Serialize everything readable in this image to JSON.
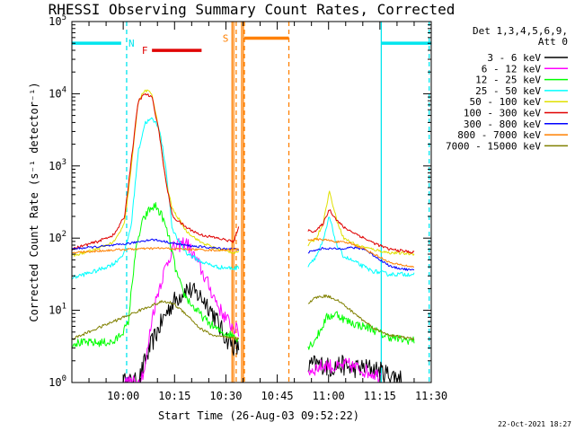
{
  "chart_data": {
    "type": "line",
    "title": "RHESSI Observing Summary Count Rates, Corrected",
    "xlabel": "Start Time (26-Aug-03 09:52:22)",
    "ylabel": "Corrected Count Rate (s⁻¹ detector⁻¹)",
    "xlim": [
      -7.4,
      97.6
    ],
    "ylim_log10": [
      0,
      5
    ],
    "x_ticks": [
      {
        "value": 7.6,
        "label": "10:00"
      },
      {
        "value": 22.6,
        "label": "10:15"
      },
      {
        "value": 37.6,
        "label": "10:30"
      },
      {
        "value": 52.6,
        "label": "10:45"
      },
      {
        "value": 67.6,
        "label": "11:00"
      },
      {
        "value": 82.6,
        "label": "11:15"
      },
      {
        "value": 97.6,
        "label": "11:30"
      }
    ],
    "y_ticks": [
      {
        "value": 0,
        "base": "10",
        "exp": "0"
      },
      {
        "value": 1,
        "base": "10",
        "exp": "1"
      },
      {
        "value": 2,
        "base": "10",
        "exp": "2"
      },
      {
        "value": 3,
        "base": "10",
        "exp": "3"
      },
      {
        "value": 4,
        "base": "10",
        "exp": "4"
      },
      {
        "value": 5,
        "base": "10",
        "exp": "5"
      }
    ],
    "legend": {
      "header": [
        "Det 1,3,4,5,6,9,",
        "Att 0"
      ],
      "position": "right"
    },
    "series": [
      {
        "name": "3 - 6 keV",
        "color": "#000000",
        "noise": 0.14,
        "x": [
          7.6,
          10.0,
          12.0,
          14.0,
          16.0,
          18.0,
          20.0,
          22.0,
          26.0,
          30.0,
          32.0,
          34.0,
          36.0,
          38.0,
          40.0,
          41.5,
          61.5,
          63.0,
          66.0,
          68.0,
          71.0,
          74.0,
          77.0,
          80.0,
          83.0,
          86.0,
          89.0
        ],
        "log10y": [
          0,
          0,
          0,
          0.3,
          0.55,
          0.75,
          0.95,
          1.1,
          1.3,
          1.2,
          1.1,
          0.95,
          0.75,
          0.6,
          0.5,
          0.45,
          0.2,
          0.25,
          0.25,
          0.2,
          0.25,
          0.2,
          0.2,
          0.2,
          0.15,
          0.1,
          0.05
        ]
      },
      {
        "name": "6 - 12 keV",
        "color": "#ff00ff",
        "noise": 0.1,
        "x": [
          7.6,
          10.0,
          12.0,
          14.0,
          16.0,
          18.0,
          20.0,
          22.0,
          26.0,
          30.0,
          33.0,
          36.0,
          39.0,
          41.5,
          61.5,
          64.0,
          67.0,
          70.0,
          73.0,
          76.0,
          79.0,
          83.0
        ],
        "log10y": [
          0,
          0,
          0,
          0.2,
          0.9,
          1.3,
          1.6,
          1.85,
          1.95,
          1.6,
          1.3,
          1.0,
          0.8,
          0.7,
          0.15,
          0.2,
          0.25,
          0.2,
          0.25,
          0.2,
          0.15,
          0.1
        ]
      },
      {
        "name": "12 - 25 keV",
        "color": "#00ff00",
        "noise": 0.06,
        "x": [
          -7.4,
          0.0,
          5.0,
          9.0,
          11.0,
          13.0,
          15.0,
          17.0,
          19.0,
          21.0,
          23.0,
          25.0,
          28.0,
          32.0,
          36.0,
          40.0,
          41.5,
          61.5,
          63.0,
          65.0,
          67.0,
          70.0,
          73.0,
          76.0,
          80.0,
          84.0,
          88.0,
          92.6
        ],
        "log10y": [
          0.55,
          0.55,
          0.56,
          0.8,
          1.75,
          2.2,
          2.38,
          2.45,
          2.3,
          2.0,
          1.55,
          1.25,
          1.05,
          0.85,
          0.7,
          0.65,
          0.6,
          0.5,
          0.55,
          0.7,
          0.9,
          0.95,
          0.85,
          0.8,
          0.75,
          0.65,
          0.6,
          0.58
        ]
      },
      {
        "name": "25 - 50 keV",
        "color": "#00ffff",
        "noise": 0.03,
        "x": [
          -7.4,
          0.0,
          5.0,
          8.0,
          10.0,
          12.0,
          14.0,
          16.0,
          18.0,
          20.0,
          22.0,
          26.0,
          30.0,
          35.0,
          40.0,
          41.5,
          61.5,
          64.0,
          66.0,
          67.8,
          70.0,
          72.0,
          74.0,
          76.0,
          80.0,
          85.0,
          92.6
        ],
        "log10y": [
          1.45,
          1.55,
          1.65,
          1.8,
          2.2,
          3.2,
          3.6,
          3.65,
          3.55,
          3.0,
          2.1,
          1.8,
          1.68,
          1.6,
          1.58,
          1.6,
          1.62,
          1.75,
          1.95,
          2.3,
          1.9,
          1.75,
          1.7,
          1.65,
          1.55,
          1.5,
          1.5
        ]
      },
      {
        "name": "50 - 100 keV",
        "color": "#e0e000",
        "noise": 0.02,
        "x": [
          -7.4,
          0.0,
          5.0,
          8.0,
          10.0,
          12.0,
          14.0,
          16.0,
          18.0,
          20.0,
          22.0,
          26.0,
          30.0,
          35.0,
          40.0,
          41.5,
          61.5,
          64.0,
          66.0,
          67.8,
          70.0,
          72.0,
          74.0,
          76.0,
          80.0,
          85.0,
          92.6
        ],
        "log10y": [
          1.75,
          1.85,
          1.95,
          2.2,
          3.0,
          3.9,
          4.05,
          4.0,
          3.5,
          2.8,
          2.4,
          2.1,
          1.95,
          1.85,
          1.8,
          1.82,
          1.9,
          2.0,
          2.2,
          2.65,
          2.25,
          2.0,
          1.95,
          1.9,
          1.85,
          1.8,
          1.78
        ]
      },
      {
        "name": "100 - 300 keV",
        "color": "#e00000",
        "noise": 0.02,
        "x": [
          -7.4,
          0.0,
          5.0,
          8.0,
          10.0,
          12.0,
          14.0,
          16.0,
          18.0,
          20.0,
          22.0,
          26.0,
          30.0,
          35.0,
          40.0,
          41.5,
          61.5,
          64.0,
          66.0,
          67.8,
          70.0,
          72.0,
          74.0,
          76.0,
          80.0,
          85.0,
          92.6
        ],
        "log10y": [
          1.85,
          1.95,
          2.05,
          2.3,
          3.1,
          3.9,
          4.0,
          3.95,
          3.5,
          2.8,
          2.3,
          2.15,
          2.05,
          2.0,
          1.95,
          2.2,
          2.1,
          2.1,
          2.2,
          2.4,
          2.25,
          2.15,
          2.1,
          2.05,
          1.95,
          1.85,
          1.8
        ]
      },
      {
        "name": "300 - 800 keV",
        "color": "#0000ff",
        "noise": 0.015,
        "x": [
          -7.4,
          0.0,
          5.0,
          8.0,
          10.0,
          13.0,
          16.0,
          19.0,
          22.0,
          26.0,
          30.0,
          35.0,
          40.0,
          41.5,
          61.5,
          66.0,
          70.0,
          74.0,
          78.0,
          82.0,
          86.0,
          92.6
        ],
        "log10y": [
          1.85,
          1.88,
          1.9,
          1.92,
          1.93,
          1.96,
          1.98,
          1.96,
          1.93,
          1.9,
          1.88,
          1.86,
          1.85,
          1.85,
          1.8,
          1.86,
          1.85,
          1.87,
          1.85,
          1.72,
          1.6,
          1.55
        ]
      },
      {
        "name": "800 - 7000 keV",
        "color": "#ff8000",
        "noise": 0.015,
        "x": [
          -7.4,
          0.0,
          6.0,
          12.0,
          18.0,
          24.0,
          30.0,
          36.0,
          41.5,
          61.5,
          66.0,
          70.0,
          74.0,
          78.0,
          82.0,
          86.0,
          92.6
        ],
        "log10y": [
          1.8,
          1.82,
          1.84,
          1.85,
          1.86,
          1.85,
          1.84,
          1.83,
          1.85,
          1.98,
          1.98,
          1.95,
          1.93,
          1.85,
          1.75,
          1.65,
          1.6
        ]
      },
      {
        "name": "7000 - 15000 keV",
        "color": "#808000",
        "noise": 0.02,
        "x": [
          -7.4,
          0.0,
          5.0,
          10.0,
          15.0,
          19.0,
          22.0,
          26.0,
          30.0,
          34.0,
          38.0,
          41.5,
          61.5,
          64.0,
          67.0,
          70.0,
          74.0,
          78.0,
          82.0,
          86.0,
          92.6
        ],
        "log10y": [
          0.6,
          0.75,
          0.85,
          0.95,
          1.05,
          1.12,
          1.1,
          0.95,
          0.75,
          0.65,
          0.62,
          0.6,
          1.1,
          1.18,
          1.2,
          1.15,
          1.0,
          0.85,
          0.72,
          0.65,
          0.6
        ]
      }
    ],
    "time_markers": [
      {
        "kind": "bar",
        "label": "",
        "x0": -7.4,
        "x1": 7.0,
        "log10y": 4.7,
        "color": "#00e5ee"
      },
      {
        "kind": "bar",
        "label": "",
        "x0": 83.0,
        "x1": 97.6,
        "log10y": 4.7,
        "color": "#00e5ee"
      },
      {
        "kind": "bar",
        "label": "F",
        "x0": 16.0,
        "x1": 30.5,
        "log10y": 4.6,
        "color": "#e00000"
      },
      {
        "kind": "bar",
        "label": "",
        "x0": 43.0,
        "x1": 56.0,
        "log10y": 4.77,
        "color": "#ff8000"
      },
      {
        "kind": "text",
        "label": "N",
        "x": 10.0,
        "log10y": 4.7,
        "color": "#00e5ee"
      },
      {
        "kind": "text",
        "label": "S",
        "x": 37.5,
        "log10y": 4.77,
        "color": "#ff8000"
      }
    ],
    "vertical_lines": [
      {
        "x": 8.6,
        "color": "#00e5ee",
        "dashed": true
      },
      {
        "x": 83.0,
        "color": "#00e5ee",
        "dashed": false
      },
      {
        "x": 97.0,
        "color": "#00e5ee",
        "dashed": true
      },
      {
        "x": 39.4,
        "color": "#ff8000",
        "dashed": false
      },
      {
        "x": 39.9,
        "color": "#ff8000",
        "dashed": false
      },
      {
        "x": 40.6,
        "color": "#ff8000",
        "dashed": true
      },
      {
        "x": 42.2,
        "color": "#ff8000",
        "dashed": false
      },
      {
        "x": 42.7,
        "color": "#ff8000",
        "dashed": false
      },
      {
        "x": 43.0,
        "color": "#ff8000",
        "dashed": true
      },
      {
        "x": 56.0,
        "color": "#ff8000",
        "dashed": true
      }
    ],
    "footer_date": "22-Oct-2021 18:27"
  }
}
